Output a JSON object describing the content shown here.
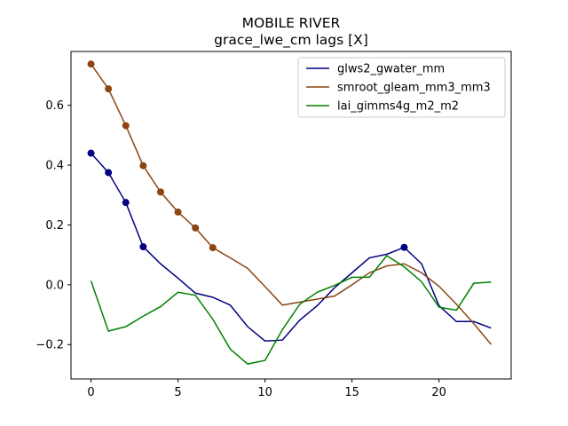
{
  "chart_data": {
    "type": "line",
    "title": "MOBILE RIVER",
    "subtitle": "grace_lwe_cm lags [X]",
    "xlabel": "",
    "ylabel": "",
    "xlim": [
      -1.15,
      24.15
    ],
    "ylim": [
      -0.315,
      0.78
    ],
    "xticks": [
      0,
      5,
      10,
      15,
      20
    ],
    "yticks": [
      -0.2,
      0.0,
      0.2,
      0.4,
      0.6
    ],
    "ytick_labels": [
      "−0.2",
      "0.0",
      "0.2",
      "0.4",
      "0.6"
    ],
    "grid": false,
    "legend_position": "top-right",
    "series": [
      {
        "name": "glws2_gwater_mm",
        "color": "#000080",
        "x": [
          0,
          1,
          2,
          3,
          4,
          5,
          6,
          7,
          8,
          9,
          10,
          11,
          12,
          13,
          14,
          15,
          16,
          17,
          18,
          19,
          20,
          21,
          22,
          23
        ],
        "values": [
          0.44,
          0.375,
          0.275,
          0.127,
          0.07,
          0.022,
          -0.028,
          -0.042,
          -0.068,
          -0.14,
          -0.188,
          -0.185,
          -0.118,
          -0.07,
          -0.01,
          0.04,
          0.09,
          0.102,
          0.125,
          0.07,
          -0.07,
          -0.123,
          -0.123,
          -0.145
        ],
        "markers_x": [
          0,
          1,
          2,
          3,
          18
        ]
      },
      {
        "name": "smroot_gleam_mm3_mm3",
        "color": "#8B4513",
        "x": [
          0,
          1,
          2,
          3,
          4,
          5,
          6,
          7,
          8,
          9,
          10,
          11,
          12,
          13,
          14,
          15,
          16,
          17,
          18,
          19,
          20,
          21,
          22,
          23
        ],
        "values": [
          0.738,
          0.655,
          0.532,
          0.398,
          0.31,
          0.243,
          0.19,
          0.124,
          0.09,
          0.055,
          -0.006,
          -0.068,
          -0.058,
          -0.048,
          -0.038,
          0.0,
          0.04,
          0.063,
          0.07,
          0.04,
          -0.005,
          -0.065,
          -0.13,
          -0.2
        ],
        "markers_x": [
          0,
          1,
          2,
          3,
          4,
          5,
          6,
          7
        ]
      },
      {
        "name": "lai_gimms4g_m2_m2",
        "color": "#008000",
        "x": [
          0,
          1,
          2,
          3,
          4,
          5,
          6,
          7,
          8,
          9,
          10,
          11,
          12,
          13,
          14,
          15,
          16,
          17,
          18,
          19,
          20,
          21,
          22,
          23
        ],
        "values": [
          0.013,
          -0.155,
          -0.14,
          -0.105,
          -0.073,
          -0.025,
          -0.035,
          -0.115,
          -0.215,
          -0.265,
          -0.253,
          -0.15,
          -0.065,
          -0.025,
          -0.002,
          0.025,
          0.025,
          0.097,
          0.06,
          0.01,
          -0.075,
          -0.085,
          0.005,
          0.009
        ],
        "markers_x": []
      }
    ]
  }
}
